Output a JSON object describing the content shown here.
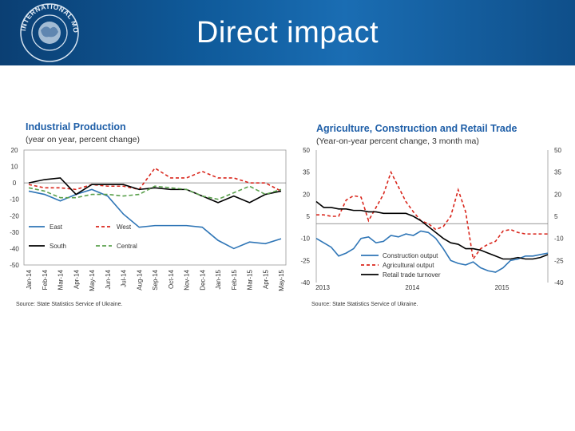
{
  "slide": {
    "title": "Direct impact",
    "logo_text": "INTERNATIONAL MONETARY FUND"
  },
  "chart_data": [
    {
      "type": "line",
      "title": "Industrial Production",
      "subtitle": "(year on year, percent change)",
      "source": "Source: State Statistics Service of Ukraine.",
      "categories": [
        "Jan-14",
        "Feb-14",
        "Mar-14",
        "Apr-14",
        "May-14",
        "Jun-14",
        "Jul-14",
        "Aug-14",
        "Sep-14",
        "Oct-14",
        "Nov-14",
        "Dec-14",
        "Jan-15",
        "Feb-15",
        "Mar-15",
        "Apr-15",
        "May-15"
      ],
      "y_ticks": [
        "20",
        "10",
        "0",
        "-10",
        "-20",
        "-30",
        "-40",
        "-50"
      ],
      "ylim": [
        -50,
        20
      ],
      "series": [
        {
          "name": "East",
          "color": "#2e75b6",
          "dash": "",
          "x": [
            0,
            1,
            2,
            3,
            4,
            5,
            6,
            7,
            8,
            9,
            10,
            11,
            12,
            13,
            14,
            15,
            16
          ],
          "values": [
            -5,
            -7,
            -11,
            -7,
            -4,
            -8,
            -19,
            -27,
            -26,
            -26,
            -26,
            -27,
            -35,
            -40,
            -36,
            -37,
            -34
          ]
        },
        {
          "name": "West",
          "color": "#d9261c",
          "dash": "4,3",
          "x": [
            0,
            1,
            2,
            3,
            4,
            5,
            6,
            7,
            8,
            9,
            10,
            11,
            12,
            13,
            14,
            15,
            16
          ],
          "values": [
            -1,
            -3,
            -3,
            -4,
            -1,
            -2,
            -2,
            -4,
            9,
            3,
            3,
            7,
            3,
            3,
            0,
            0,
            -5
          ]
        },
        {
          "name": "South",
          "color": "#000000",
          "dash": "",
          "x": [
            0,
            1,
            2,
            3,
            4,
            5,
            6,
            7,
            8,
            9,
            10,
            11,
            12,
            13,
            14,
            15,
            16
          ],
          "values": [
            0,
            2,
            3,
            -7,
            -1,
            -1,
            -1,
            -4,
            -3,
            -4,
            -4,
            -8,
            -12,
            -8,
            -12,
            -7,
            -5
          ]
        },
        {
          "name": "Central",
          "color": "#5aa04c",
          "dash": "5,3",
          "x": [
            0,
            1,
            2,
            3,
            4,
            5,
            6,
            7,
            8,
            9,
            10,
            11,
            12,
            13,
            14,
            15,
            16
          ],
          "values": [
            -3,
            -5,
            -9,
            -9,
            -7,
            -7,
            -8,
            -7,
            -2,
            -3,
            -4,
            -8,
            -10,
            -6,
            -2,
            -7,
            -4
          ]
        }
      ],
      "legend": [
        "East",
        "West",
        "South",
        "Central"
      ]
    },
    {
      "type": "line",
      "title": "Agriculture, Construction and Retail Trade",
      "subtitle": "(Year-on-year percent change, 3 month ma)",
      "source": "Source: State Statistics Service of Ukraine.",
      "x_ticks": [
        "2013",
        "2014",
        "2015"
      ],
      "x_tick_pos": [
        0,
        12,
        24
      ],
      "xlim": [
        0,
        31
      ],
      "y_ticks": [
        "50",
        "35",
        "20",
        "5",
        "-10",
        "-25",
        "-40"
      ],
      "ylim": [
        -40,
        50
      ],
      "series": [
        {
          "name": "Construction output",
          "color": "#2e75b6",
          "dash": "",
          "x": [
            0,
            1,
            2,
            3,
            4,
            5,
            6,
            7,
            8,
            9,
            10,
            11,
            12,
            13,
            14,
            15,
            16,
            17,
            18,
            19,
            20,
            21,
            22,
            23,
            24,
            25,
            26,
            27,
            28,
            29,
            30,
            31
          ],
          "values": [
            -10,
            -13,
            -16,
            -22,
            -20,
            -17,
            -10,
            -9,
            -13,
            -12,
            -8,
            -9,
            -7,
            -8,
            -5,
            -6,
            -10,
            -17,
            -25,
            -27,
            -28,
            -26,
            -30,
            -32,
            -33,
            -30,
            -25,
            -24,
            -22,
            -22,
            -21,
            -20
          ]
        },
        {
          "name": "Agricultural output",
          "color": "#d9261c",
          "dash": "4,3",
          "x": [
            0,
            1,
            2,
            3,
            4,
            5,
            6,
            7,
            8,
            9,
            10,
            11,
            12,
            13,
            14,
            15,
            16,
            17,
            18,
            19,
            20,
            21,
            22,
            23,
            24,
            25,
            26,
            27,
            28,
            29,
            30,
            31
          ],
          "values": [
            6,
            6,
            5,
            5,
            16,
            19,
            18,
            2,
            11,
            20,
            35,
            25,
            15,
            8,
            2,
            0,
            -4,
            -2,
            5,
            23,
            8,
            -24,
            -17,
            -14,
            -12,
            -5,
            -4,
            -6,
            -7,
            -7,
            -7,
            -7
          ]
        },
        {
          "name": "Retail trade turnover",
          "color": "#000000",
          "dash": "",
          "x": [
            0,
            1,
            2,
            3,
            4,
            5,
            6,
            7,
            8,
            9,
            10,
            11,
            12,
            13,
            14,
            15,
            16,
            17,
            18,
            19,
            20,
            21,
            22,
            23,
            24,
            25,
            26,
            27,
            28,
            29,
            30,
            31
          ],
          "values": [
            15,
            11,
            11,
            10,
            10,
            9,
            9,
            8,
            8,
            7,
            7,
            7,
            7,
            5,
            2,
            -2,
            -6,
            -10,
            -13,
            -14,
            -17,
            -17,
            -18,
            -20,
            -22,
            -24,
            -24,
            -23,
            -24,
            -24,
            -23,
            -21
          ]
        }
      ],
      "legend": [
        "Construction output",
        "Agricultural output",
        "Retail trade turnover"
      ]
    }
  ]
}
